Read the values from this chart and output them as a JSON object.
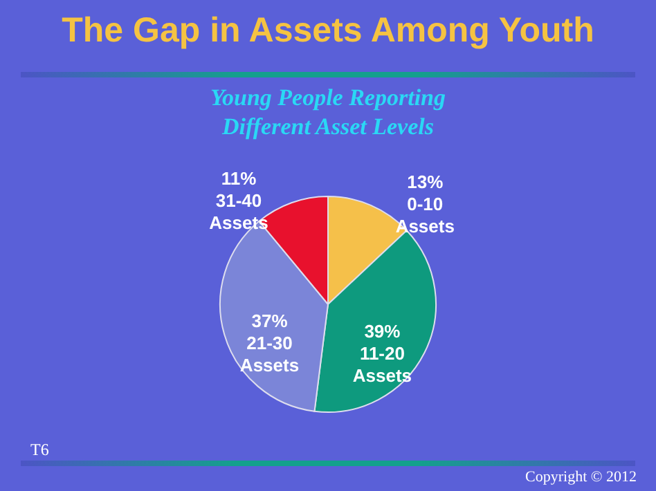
{
  "chart_data": {
    "type": "pie",
    "title": "The Gap in Assets Among Youth",
    "subtitle": "Young People Reporting\nDifferent Asset Levels",
    "categories": [
      "0-10 Assets",
      "11-20 Assets",
      "21-30 Assets",
      "31-40 Assets"
    ],
    "values": [
      13,
      39,
      37,
      11
    ],
    "value_labels": [
      "13%",
      "39%",
      "37%",
      "11%"
    ],
    "colors": [
      "#f5c04a",
      "#0e9a7e",
      "#7b85d8",
      "#e8112d"
    ],
    "annotations": [
      "T6",
      "Copyright © 2012"
    ]
  }
}
